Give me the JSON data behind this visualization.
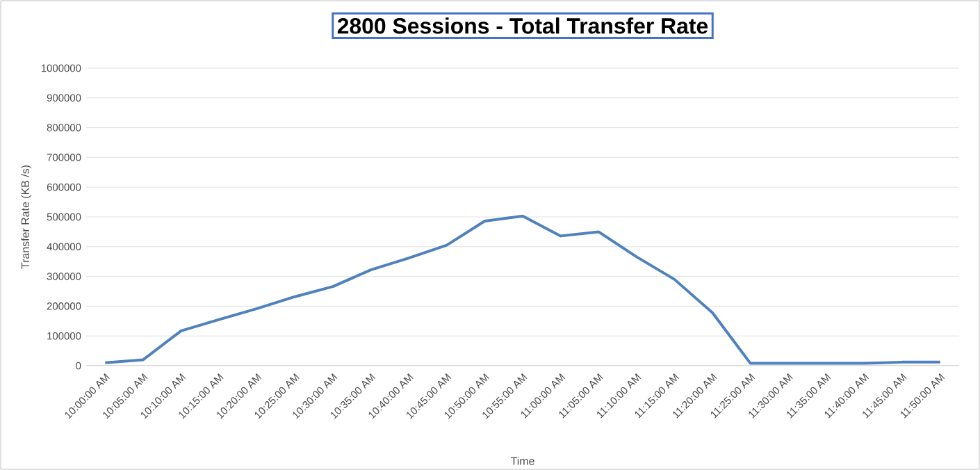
{
  "chart_data": {
    "type": "line",
    "title": "2800 Sessions - Total Transfer Rate",
    "xlabel": "Time",
    "ylabel": "Transfer Rate (KB /s)",
    "categories": [
      "10:00:00 AM",
      "10:05:00 AM",
      "10:10:00 AM",
      "10:15:00 AM",
      "10:20:00 AM",
      "10:25:00 AM",
      "10:30:00 AM",
      "10:35:00 AM",
      "10:40:00 AM",
      "10:45:00 AM",
      "10:50:00 AM",
      "10:55:00 AM",
      "11:00:00 AM",
      "11:05:00 AM",
      "11:10:00 AM",
      "11:15:00 AM",
      "11:20:00 AM",
      "11:25:00 AM",
      "11:30:00 AM",
      "11:35:00 AM",
      "11:40:00 AM",
      "11:45:00 AM",
      "11:50:00 AM"
    ],
    "series": [
      {
        "color": "#4f81bd",
        "values": [
          10000,
          20000,
          117000,
          155000,
          192000,
          232000,
          266000,
          322000,
          362000,
          405000,
          486000,
          503000,
          436000,
          450000,
          366000,
          290000,
          178000,
          8000,
          8000,
          8000,
          8000,
          12000,
          12000
        ]
      }
    ],
    "ylim": [
      0,
      1000000
    ],
    "yticks": [
      0,
      100000,
      200000,
      300000,
      400000,
      500000,
      600000,
      700000,
      800000,
      900000,
      1000000
    ],
    "grid": "y",
    "marker": "none",
    "line_style": "solid"
  }
}
